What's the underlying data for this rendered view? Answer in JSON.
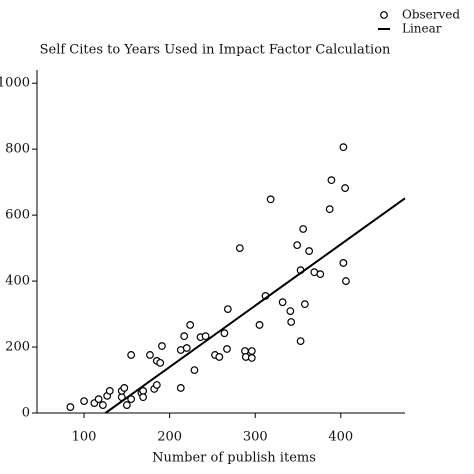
{
  "chart_data": {
    "type": "scatter",
    "title": "Self Cites to Years Used in Impact Factor Calculation",
    "x_label": "Number of publish items",
    "legend_position": "top-right",
    "xlim": [
      45,
      475
    ],
    "ylim": [
      0,
      1040
    ],
    "xticks": [
      100,
      200,
      300,
      400
    ],
    "yticks": [
      0,
      200,
      400,
      600,
      800,
      1000
    ],
    "series": [
      {
        "name": "Observed",
        "color": "#000000",
        "marker": "open-circle",
        "x": [
          84,
          100,
          112,
          117,
          122,
          127,
          130,
          144,
          144,
          147,
          150,
          155,
          167,
          169,
          169,
          155,
          177,
          182,
          185,
          185,
          189,
          191,
          213,
          217,
          220,
          224,
          213,
          229,
          236,
          242,
          253,
          258,
          264,
          267,
          268,
          282,
          288,
          289,
          296,
          296,
          305,
          312,
          318,
          332,
          341,
          342,
          349,
          353,
          353,
          356,
          358,
          363,
          369,
          376,
          387,
          389,
          403,
          405,
          403,
          406
        ],
        "values": [
          18,
          36,
          30,
          42,
          24,
          52,
          67,
          48,
          67,
          76,
          24,
          42,
          61,
          67,
          48,
          176,
          176,
          73,
          85,
          158,
          152,
          203,
          191,
          233,
          197,
          267,
          76,
          130,
          230,
          233,
          176,
          170,
          242,
          194,
          315,
          500,
          188,
          170,
          188,
          167,
          267,
          355,
          648,
          336,
          309,
          276,
          509,
          218,
          433,
          558,
          330,
          491,
          427,
          421,
          618,
          706,
          806,
          682,
          455,
          400
        ]
      },
      {
        "name": "Linear",
        "color": "#000000",
        "marker": "line",
        "x": [
          125,
          475
        ],
        "values": [
          0,
          651
        ]
      }
    ]
  }
}
